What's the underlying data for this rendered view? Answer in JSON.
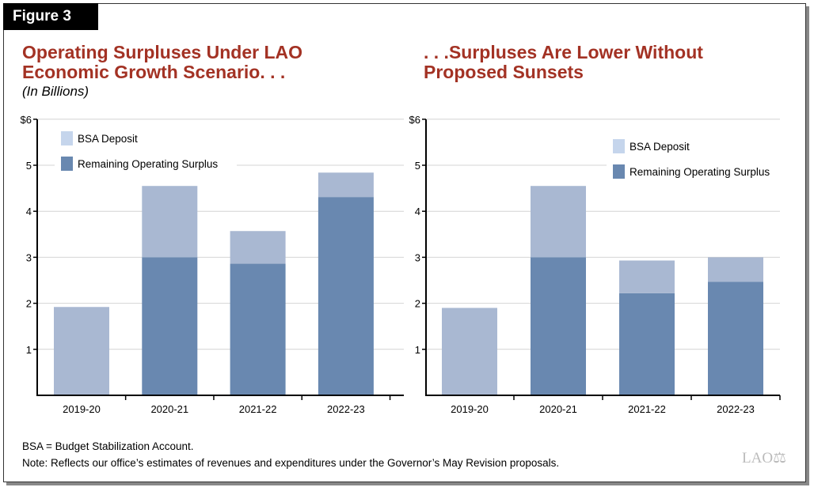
{
  "figure_label": "Figure 3",
  "colors": {
    "bsa": "#a9b8d2",
    "bsa_legend": "#c5d5ec",
    "surplus": "#6988b0",
    "title": "#a33224"
  },
  "chart_data": [
    {
      "type": "bar",
      "stacked": true,
      "title": "Operating Surpluses Under LAO Economic Growth Scenario. . .",
      "subtitle": "(In Billions)",
      "categories": [
        "2019-20",
        "2020-21",
        "2021-22",
        "2022-23"
      ],
      "series": [
        {
          "name": "Remaining Operating Surplus",
          "values": [
            0,
            3.0,
            2.86,
            4.31
          ]
        },
        {
          "name": "BSA Deposit",
          "values": [
            1.92,
            1.55,
            0.71,
            0.53
          ]
        }
      ],
      "ylim": [
        0,
        6
      ],
      "yticks": [
        "",
        "1",
        "2",
        "3",
        "4",
        "5",
        "$6"
      ],
      "grid": true,
      "legend": "top-left"
    },
    {
      "type": "bar",
      "stacked": true,
      "title": ". . .Surpluses Are Lower Without Proposed Sunsets",
      "categories": [
        "2019-20",
        "2020-21",
        "2021-22",
        "2022-23"
      ],
      "series": [
        {
          "name": "Remaining Operating Surplus",
          "values": [
            0,
            3.0,
            2.22,
            2.47
          ]
        },
        {
          "name": "BSA Deposit",
          "values": [
            1.9,
            1.55,
            0.71,
            0.53
          ]
        }
      ],
      "ylim": [
        0,
        6
      ],
      "yticks": [
        "",
        "1",
        "2",
        "3",
        "4",
        "5",
        "$6"
      ],
      "grid": true,
      "legend": "top-right"
    }
  ],
  "notes": [
    "BSA = Budget Stabilization Account.",
    "Note: Reflects our office’s estimates of revenues and expenditures under the Governor’s May Revision proposals."
  ],
  "logo": "LAO"
}
